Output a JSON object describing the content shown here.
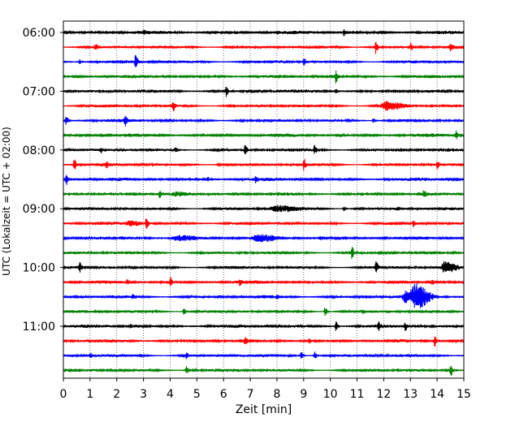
{
  "chart_data": {
    "type": "line",
    "xlabel": "Zeit  [min]",
    "ylabel": "UTC (Lokalzeit = UTC + 02:00)",
    "xlim": [
      0,
      15
    ],
    "x_ticks": [
      0,
      1,
      2,
      3,
      4,
      5,
      6,
      7,
      8,
      9,
      10,
      11,
      12,
      13,
      14,
      15
    ],
    "x_tick_labels": [
      "0",
      "1",
      "2",
      "3",
      "4",
      "5",
      "6",
      "7",
      "8",
      "9",
      "10",
      "11",
      "12",
      "13",
      "14",
      "15"
    ],
    "grid": "vertical dotted",
    "legend": "none",
    "y_ticks": [
      "06:00",
      "07:00",
      "08:00",
      "09:00",
      "10:00",
      "11:00"
    ],
    "y_tick_trace_index": [
      0,
      4,
      8,
      12,
      16,
      20
    ],
    "trace_interval_min": 15,
    "colors": [
      "#000000",
      "#ff0000",
      "#0000ff",
      "#008000"
    ],
    "traces": [
      {
        "time": "06:00",
        "color": "#000000",
        "amp": 2.2,
        "events": [
          [
            10.5,
            4
          ],
          [
            3.0,
            1.5
          ],
          [
            6.5,
            1.5
          ],
          [
            8.0,
            1.5
          ]
        ]
      },
      {
        "time": "06:15",
        "color": "#ff0000",
        "amp": 2.2,
        "events": [
          [
            11.7,
            8
          ],
          [
            13.0,
            5
          ],
          [
            14.5,
            4
          ],
          [
            1.2,
            3
          ]
        ]
      },
      {
        "time": "06:30",
        "color": "#0000ff",
        "amp": 2.2,
        "events": [
          [
            2.7,
            9
          ],
          [
            9.0,
            4
          ],
          [
            0.6,
            3
          ]
        ]
      },
      {
        "time": "06:45",
        "color": "#008000",
        "amp": 2.2,
        "events": [
          [
            10.2,
            8
          ]
        ]
      },
      {
        "time": "07:00",
        "color": "#000000",
        "amp": 2.2,
        "events": [
          [
            6.1,
            7
          ],
          [
            10.2,
            3
          ]
        ]
      },
      {
        "time": "07:15",
        "color": "#ff0000",
        "amp": 2.2,
        "events": [
          [
            4.1,
            6
          ],
          [
            12.1,
            5,
            0.6
          ]
        ]
      },
      {
        "time": "07:30",
        "color": "#0000ff",
        "amp": 2.2,
        "events": [
          [
            0.1,
            6
          ],
          [
            2.3,
            7
          ],
          [
            11.6,
            3
          ]
        ]
      },
      {
        "time": "07:45",
        "color": "#008000",
        "amp": 2.2,
        "events": [
          [
            14.7,
            6
          ]
        ]
      },
      {
        "time": "08:00",
        "color": "#000000",
        "amp": 2.2,
        "events": [
          [
            6.8,
            6
          ],
          [
            9.4,
            5
          ],
          [
            4.2,
            3
          ],
          [
            1.4,
            3
          ]
        ]
      },
      {
        "time": "08:15",
        "color": "#ff0000",
        "amp": 2.2,
        "events": [
          [
            0.4,
            7
          ],
          [
            9.0,
            7
          ],
          [
            14.0,
            5
          ],
          [
            1.6,
            3
          ],
          [
            5.8,
            3
          ]
        ]
      },
      {
        "time": "08:30",
        "color": "#0000ff",
        "amp": 2.2,
        "events": [
          [
            0.1,
            7
          ],
          [
            5.4,
            3
          ],
          [
            7.2,
            3
          ]
        ]
      },
      {
        "time": "08:45",
        "color": "#008000",
        "amp": 2.2,
        "events": [
          [
            3.6,
            5
          ],
          [
            13.5,
            5
          ],
          [
            4.2,
            3,
            0.6
          ]
        ]
      },
      {
        "time": "09:00",
        "color": "#000000",
        "amp": 2.2,
        "events": [
          [
            8.0,
            3,
            0.8
          ],
          [
            10.5,
            3
          ],
          [
            12.5,
            2
          ]
        ]
      },
      {
        "time": "09:15",
        "color": "#ff0000",
        "amp": 2.2,
        "events": [
          [
            3.1,
            7
          ],
          [
            2.5,
            3,
            0.5
          ],
          [
            13.1,
            3
          ]
        ]
      },
      {
        "time": "09:30",
        "color": "#0000ff",
        "amp": 2.2,
        "events": [
          [
            4.3,
            3,
            0.8
          ],
          [
            7.3,
            3,
            0.7
          ],
          [
            9.6,
            2
          ]
        ]
      },
      {
        "time": "09:45",
        "color": "#008000",
        "amp": 2.2,
        "events": [
          [
            10.8,
            7
          ]
        ]
      },
      {
        "time": "10:00",
        "color": "#000000",
        "amp": 2.2,
        "events": [
          [
            0.6,
            6
          ],
          [
            11.7,
            8
          ],
          [
            14.3,
            7,
            0.4
          ]
        ]
      },
      {
        "time": "10:15",
        "color": "#ff0000",
        "amp": 2.2,
        "events": [
          [
            4.0,
            6
          ],
          [
            2.4,
            3
          ],
          [
            13.8,
            4
          ],
          [
            6.6,
            3
          ]
        ]
      },
      {
        "time": "10:30",
        "color": "#0000ff",
        "amp": 2.2,
        "events": [
          [
            13.2,
            14,
            0.5
          ],
          [
            12.8,
            6,
            0.3
          ],
          [
            2.6,
            3
          ],
          [
            8.0,
            2
          ]
        ]
      },
      {
        "time": "10:45",
        "color": "#008000",
        "amp": 2.2,
        "events": [
          [
            9.8,
            7
          ],
          [
            4.5,
            4
          ],
          [
            11.2,
            3
          ]
        ]
      },
      {
        "time": "11:00",
        "color": "#000000",
        "amp": 2.2,
        "events": [
          [
            10.2,
            6
          ],
          [
            11.8,
            5
          ],
          [
            12.8,
            5
          ],
          [
            2.5,
            3
          ]
        ]
      },
      {
        "time": "11:15",
        "color": "#ff0000",
        "amp": 2.2,
        "events": [
          [
            13.9,
            7
          ],
          [
            6.8,
            4
          ],
          [
            9.2,
            3
          ]
        ]
      },
      {
        "time": "11:30",
        "color": "#0000ff",
        "amp": 2.2,
        "events": [
          [
            4.6,
            4
          ],
          [
            8.9,
            5
          ],
          [
            9.4,
            5
          ],
          [
            1.0,
            3
          ]
        ]
      },
      {
        "time": "11:45",
        "color": "#008000",
        "amp": 2.2,
        "events": [
          [
            4.6,
            5
          ],
          [
            14.5,
            7
          ]
        ]
      }
    ]
  }
}
